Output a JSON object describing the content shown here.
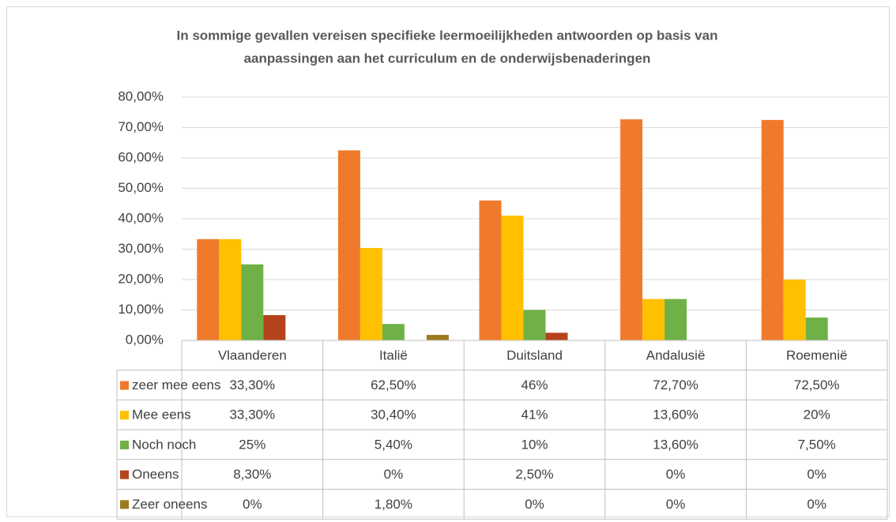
{
  "chart_data": {
    "type": "bar",
    "title": [
      "In sommige gevallen vereisen specifieke leermoeilijkheden antwoorden op basis van",
      "aanpassingen aan het curriculum en de onderwijsbenaderingen"
    ],
    "categories": [
      "Vlaanderen",
      "Italië",
      "Duitsland",
      "Andalusië",
      "Roemenië"
    ],
    "series": [
      {
        "name": "zeer mee eens",
        "color": "#f07a2c",
        "values": [
          33.3,
          62.5,
          46,
          72.7,
          72.5
        ],
        "value_labels": [
          "33,30%",
          "62,50%",
          "46%",
          "72,70%",
          "72,50%"
        ]
      },
      {
        "name": "Mee eens",
        "color": "#ffc000",
        "values": [
          33.3,
          30.4,
          41,
          13.6,
          20
        ],
        "value_labels": [
          "33,30%",
          "30,40%",
          "41%",
          "13,60%",
          "20%"
        ]
      },
      {
        "name": "Noch noch",
        "color": "#6fb146",
        "values": [
          25,
          5.4,
          10,
          13.6,
          7.5
        ],
        "value_labels": [
          "25%",
          "5,40%",
          "10%",
          "13,60%",
          "7,50%"
        ]
      },
      {
        "name": "Oneens",
        "color": "#b5431c",
        "values": [
          8.3,
          0,
          2.5,
          0,
          0
        ],
        "value_labels": [
          "8,30%",
          "0%",
          "2,50%",
          "0%",
          "0%"
        ]
      },
      {
        "name": "Zeer oneens",
        "color": "#9c7b1d",
        "values": [
          0,
          1.8,
          0,
          0,
          0
        ],
        "value_labels": [
          "0%",
          "1,80%",
          "0%",
          "0%",
          "0%"
        ]
      }
    ],
    "ylim": [
      0,
      80
    ],
    "yticks": [
      {
        "value": 0,
        "label": "0,00%"
      },
      {
        "value": 10,
        "label": "10,00%"
      },
      {
        "value": 20,
        "label": "20,00%"
      },
      {
        "value": 30,
        "label": "30,00%"
      },
      {
        "value": 40,
        "label": "40,00%"
      },
      {
        "value": 50,
        "label": "50,00%"
      },
      {
        "value": 60,
        "label": "60,00%"
      },
      {
        "value": 70,
        "label": "70,00%"
      },
      {
        "value": 80,
        "label": "80,00%"
      }
    ],
    "grid": true
  }
}
